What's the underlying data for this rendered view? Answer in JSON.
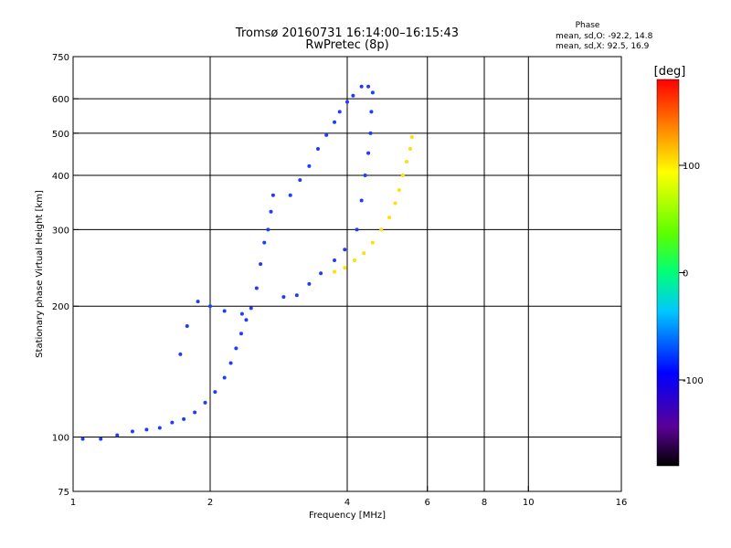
{
  "header": {
    "title_line1": "Tromsø 20160731 16:14:00–16:15:43",
    "title_line2": "RwPretec (8p)",
    "phase_title": "Phase",
    "phase_o": "mean, sd,O: -92.2, 14.8",
    "phase_x": "mean, sd,X:  92.5, 16.9"
  },
  "colorbar": {
    "unit_label": "[deg]",
    "ticks": [
      {
        "value": 100,
        "label": "100"
      },
      {
        "value": 0,
        "label": "0"
      },
      {
        "value": -100,
        "label": "-100"
      }
    ],
    "range": [
      -180,
      180
    ]
  },
  "chart_data": {
    "type": "scatter",
    "xlabel": "Frequency [MHz]",
    "ylabel": "Stationary phase Virtual Height [km]",
    "x_scale": "log",
    "y_scale": "log",
    "xlim": [
      1,
      16
    ],
    "ylim": [
      75,
      750
    ],
    "x_ticks": [
      1,
      2,
      4,
      6,
      8,
      10,
      16
    ],
    "y_ticks": [
      75,
      100,
      200,
      300,
      400,
      500,
      600,
      750
    ],
    "grid": true,
    "color_encoding": "phase [deg]",
    "series": [
      {
        "mode": "O",
        "color": "#1e3cff",
        "points": [
          [
            1.05,
            99
          ],
          [
            1.15,
            99
          ],
          [
            1.25,
            101
          ],
          [
            1.35,
            103
          ],
          [
            1.45,
            104
          ],
          [
            1.55,
            105
          ],
          [
            1.65,
            108
          ],
          [
            1.75,
            110
          ],
          [
            1.85,
            114
          ],
          [
            1.95,
            120
          ],
          [
            2.05,
            127
          ],
          [
            2.15,
            137
          ],
          [
            2.22,
            148
          ],
          [
            2.28,
            160
          ],
          [
            2.34,
            173
          ],
          [
            2.4,
            186
          ],
          [
            2.46,
            198
          ],
          [
            2.53,
            220
          ],
          [
            2.58,
            250
          ],
          [
            2.63,
            280
          ],
          [
            2.68,
            300
          ],
          [
            2.72,
            330
          ],
          [
            2.75,
            360
          ],
          [
            1.72,
            155
          ],
          [
            1.78,
            180
          ],
          [
            1.88,
            205
          ],
          [
            2.0,
            200
          ],
          [
            2.15,
            195
          ],
          [
            2.35,
            192
          ],
          [
            2.9,
            210
          ],
          [
            3.1,
            212
          ],
          [
            3.3,
            225
          ],
          [
            3.5,
            238
          ],
          [
            3.75,
            255
          ],
          [
            3.95,
            270
          ],
          [
            3.0,
            360
          ],
          [
            3.15,
            390
          ],
          [
            3.3,
            420
          ],
          [
            3.45,
            460
          ],
          [
            3.6,
            495
          ],
          [
            3.75,
            530
          ],
          [
            3.85,
            560
          ],
          [
            4.0,
            590
          ],
          [
            4.12,
            610
          ],
          [
            4.3,
            640
          ],
          [
            4.45,
            640
          ],
          [
            4.2,
            300
          ],
          [
            4.3,
            350
          ],
          [
            4.38,
            400
          ],
          [
            4.45,
            450
          ],
          [
            4.5,
            500
          ],
          [
            4.52,
            560
          ],
          [
            4.55,
            620
          ]
        ]
      },
      {
        "mode": "X",
        "color": "#ffe000",
        "points": [
          [
            3.75,
            240
          ],
          [
            3.95,
            245
          ],
          [
            4.15,
            255
          ],
          [
            4.35,
            265
          ],
          [
            4.55,
            280
          ],
          [
            4.75,
            300
          ],
          [
            4.95,
            320
          ],
          [
            5.1,
            345
          ],
          [
            5.2,
            370
          ],
          [
            5.3,
            400
          ],
          [
            5.4,
            430
          ],
          [
            5.5,
            460
          ],
          [
            5.55,
            490
          ]
        ]
      }
    ]
  }
}
